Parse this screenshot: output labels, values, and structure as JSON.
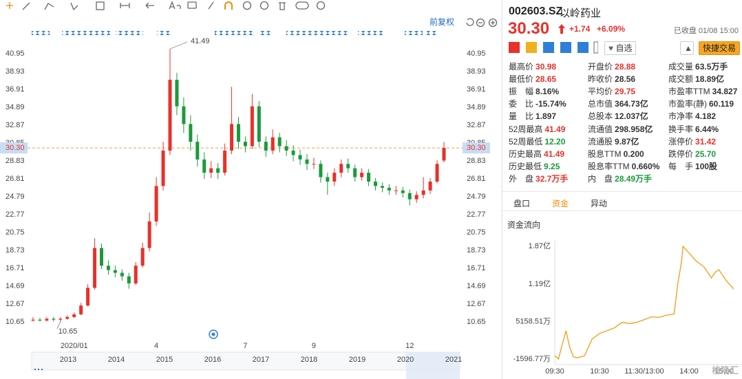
{
  "chart_data": [
    {
      "type": "candlestick",
      "categories": [
        null,
        null,
        null,
        null,
        null,
        null,
        "2020/01",
        null,
        null,
        null,
        null,
        null,
        null,
        null,
        null,
        null,
        null,
        null,
        "4",
        null,
        null,
        null,
        null,
        null,
        null,
        null,
        null,
        null,
        null,
        null,
        null,
        "7",
        null,
        null,
        null,
        null,
        null,
        null,
        null,
        null,
        null,
        "9",
        null,
        null,
        null,
        null,
        null,
        null,
        null,
        null,
        null,
        null,
        null,
        null,
        null,
        "12",
        null,
        null,
        null,
        null,
        null
      ],
      "open": [
        10.8,
        10.9,
        10.8,
        11.0,
        10.9,
        11.0,
        11.2,
        11.5,
        12.5,
        14.5,
        19.0,
        17.0,
        16.5,
        16.2,
        15.8,
        15.0,
        17.0,
        19.0,
        22.0,
        26.0,
        30.0,
        38.0,
        35.0,
        33.0,
        31.0,
        29.0,
        27.5,
        28.0,
        27.5,
        30.0,
        33.0,
        31.0,
        30.5,
        35.0,
        31.0,
        30.0,
        31.5,
        30.5,
        30.0,
        29.5,
        29.0,
        28.5,
        28.5,
        27.0,
        26.5,
        27.5,
        28.5,
        28.0,
        27.0,
        27.5,
        26.5,
        26.0,
        25.8,
        25.5,
        25.5,
        25.2,
        24.5,
        25.0,
        25.5,
        26.5,
        28.88
      ],
      "high": [
        11.2,
        11.1,
        11.2,
        11.2,
        11.2,
        11.4,
        11.7,
        12.8,
        14.9,
        20.1,
        19.5,
        17.6,
        17.0,
        16.6,
        16.2,
        17.4,
        19.6,
        23.0,
        27.0,
        31.0,
        41.49,
        38.8,
        36.0,
        34.0,
        31.8,
        29.8,
        28.8,
        28.6,
        30.8,
        37.2,
        33.8,
        31.6,
        36.4,
        35.6,
        31.6,
        32.4,
        32.0,
        31.2,
        30.6,
        30.1,
        29.6,
        29.2,
        28.9,
        27.5,
        28.0,
        29.0,
        29.1,
        28.4,
        28.0,
        27.9,
        26.9,
        26.4,
        26.2,
        26.0,
        25.9,
        25.6,
        25.4,
        27.0,
        26.9,
        28.9,
        30.98
      ],
      "low": [
        10.7,
        10.7,
        10.7,
        10.7,
        10.65,
        10.9,
        11.1,
        11.4,
        12.4,
        14.3,
        16.6,
        16.0,
        15.7,
        15.3,
        14.4,
        14.8,
        16.8,
        18.6,
        21.5,
        25.5,
        29.5,
        34.0,
        32.0,
        30.0,
        28.2,
        26.8,
        26.9,
        26.8,
        27.2,
        29.6,
        30.2,
        29.8,
        30.2,
        30.4,
        29.3,
        29.6,
        29.8,
        29.4,
        28.8,
        28.4,
        27.8,
        27.9,
        26.4,
        25.0,
        26.0,
        27.0,
        27.5,
        26.5,
        26.6,
        26.0,
        25.5,
        25.3,
        25.0,
        25.0,
        24.7,
        23.8,
        24.1,
        24.6,
        25.1,
        26.3,
        28.65
      ],
      "close": [
        10.9,
        10.8,
        11.0,
        10.9,
        11.0,
        11.2,
        11.5,
        12.5,
        14.5,
        19.0,
        17.0,
        16.5,
        16.2,
        15.8,
        15.0,
        17.0,
        19.0,
        22.0,
        26.0,
        30.0,
        38.0,
        35.0,
        33.0,
        31.0,
        29.0,
        27.5,
        28.0,
        27.5,
        30.0,
        33.0,
        31.0,
        30.5,
        35.0,
        31.0,
        30.0,
        31.5,
        30.5,
        30.0,
        29.5,
        29.0,
        28.5,
        28.5,
        27.0,
        26.5,
        27.5,
        28.5,
        28.0,
        27.0,
        27.5,
        26.5,
        26.0,
        25.8,
        25.5,
        25.5,
        25.2,
        24.5,
        25.0,
        25.5,
        26.5,
        28.5,
        30.3
      ],
      "up_color": "#e8312a",
      "down_color": "#1a9b3a",
      "ylim": [
        8.94,
        42.35
      ],
      "yticks": [
        10.65,
        12.67,
        14.69,
        16.71,
        18.73,
        20.75,
        22.77,
        24.79,
        26.81,
        28.83,
        30.85,
        32.87,
        34.89,
        36.91,
        38.93,
        40.95
      ],
      "last": {
        "value": 30.3,
        "label": "30.30"
      },
      "adjust": "前复权",
      "timeline": [
        "2013",
        "2014",
        "2015",
        "2016",
        "2017",
        "2018",
        "2019",
        "2020",
        "2021"
      ],
      "grid": false
    },
    {
      "type": "line",
      "title": "资金流向",
      "color": "#f39c12",
      "x": [
        0,
        5,
        10,
        15,
        20,
        25,
        30,
        40,
        50,
        60,
        70,
        80,
        90,
        100,
        110,
        120,
        130,
        140,
        150,
        160,
        165,
        170,
        172,
        180,
        190,
        200,
        210,
        215,
        220,
        230,
        240
      ],
      "values": [
        -1000,
        -1596.77,
        1000,
        3500,
        500,
        -1200,
        -1400,
        -1000,
        2000,
        3000,
        3500,
        4000,
        5000,
        4800,
        5000,
        5500,
        6000,
        5900,
        6300,
        6500,
        12000,
        16000,
        18700,
        17500,
        16000,
        15000,
        13000,
        14000,
        14500,
        12500,
        11000
      ],
      "xlim": [
        0,
        240
      ],
      "xticks": [
        {
          "value": 0,
          "label": "09:30"
        },
        {
          "value": 60,
          "label": "10:30"
        },
        {
          "value": 120,
          "label": "11:30/13:00"
        },
        {
          "value": 180,
          "label": "14:00"
        },
        {
          "value": 240,
          "label": "15:00"
        }
      ],
      "ylim": [
        -2600,
        19700
      ],
      "yticks": [
        {
          "value": 18700,
          "label": "1.87亿"
        },
        {
          "value": 11900,
          "label": "1.19亿"
        },
        {
          "value": 5158.51,
          "label": "5158.51万"
        },
        {
          "value": -1596.77,
          "label": "-1596.77万"
        }
      ]
    }
  ],
  "header": {
    "code": "002603.SZ",
    "name": "以岭药业",
    "price": "30.30",
    "change": "+1.74",
    "change_pct": "+6.09%",
    "status": "已收盘 01/08 15:00",
    "watchlist": "自选",
    "trade": "快捷交易"
  },
  "stats": [
    [
      {
        "label": "最高价",
        "value": "30.98",
        "color": "#e8312a"
      },
      {
        "label": "开盘价",
        "value": "28.88",
        "color": "#e8312a"
      },
      {
        "label": "成交量",
        "value": "63.5万手",
        "color": "#333"
      }
    ],
    [
      {
        "label": "最低价",
        "value": "28.65",
        "color": "#e8312a"
      },
      {
        "label": "昨收价",
        "value": "28.56",
        "color": "#333"
      },
      {
        "label": "成交额",
        "value": "18.89亿",
        "color": "#333"
      }
    ],
    [
      {
        "label": "振　幅",
        "value": "8.16%",
        "color": "#333"
      },
      {
        "label": "平均价",
        "value": "29.75",
        "color": "#e8312a"
      },
      {
        "label": "市盈率TTM",
        "value": "34.827",
        "color": "#333"
      }
    ],
    [
      {
        "label": "委　比",
        "value": "-15.74%",
        "color": "#333"
      },
      {
        "label": "总市值",
        "value": "364.73亿",
        "color": "#333"
      },
      {
        "label": "市盈率(静)",
        "value": "60.119",
        "color": "#333"
      }
    ],
    [
      {
        "label": "量　比",
        "value": "1.897",
        "color": "#333"
      },
      {
        "label": "总股本",
        "value": "12.037亿",
        "color": "#333"
      },
      {
        "label": "市净率",
        "value": "4.182",
        "color": "#333"
      }
    ],
    [
      {
        "label": "52周最高",
        "value": "41.49",
        "color": "#e8312a"
      },
      {
        "label": "流通值",
        "value": "298.958亿",
        "color": "#333"
      },
      {
        "label": "换手率",
        "value": "6.44%",
        "color": "#333"
      }
    ],
    [
      {
        "label": "52周最低",
        "value": "12.20",
        "color": "#1a9b3a"
      },
      {
        "label": "流通股",
        "value": "9.87亿",
        "color": "#333"
      },
      {
        "label": "涨停价",
        "value": "31.42",
        "color": "#e8312a"
      }
    ],
    [
      {
        "label": "历史最高",
        "value": "41.49",
        "color": "#e8312a"
      },
      {
        "label": "股息TTM",
        "value": "0.200",
        "color": "#333"
      },
      {
        "label": "跌停价",
        "value": "25.70",
        "color": "#1a9b3a"
      }
    ],
    [
      {
        "label": "历史最低",
        "value": "9.25",
        "color": "#1a9b3a"
      },
      {
        "label": "股息率TTM",
        "value": "0.660%",
        "color": "#333"
      },
      {
        "label": "每　手",
        "value": "100股",
        "color": "#333"
      }
    ],
    [
      {
        "label": "外　盘",
        "value": "32.7万手",
        "color": "#e8312a"
      },
      {
        "label": "内　盘",
        "value": "28.49万手",
        "color": "#1a9b3a"
      }
    ]
  ],
  "tabs": [
    "盘口",
    "资金",
    "异动"
  ],
  "active_tab": 1,
  "watermark": "格隆汇"
}
